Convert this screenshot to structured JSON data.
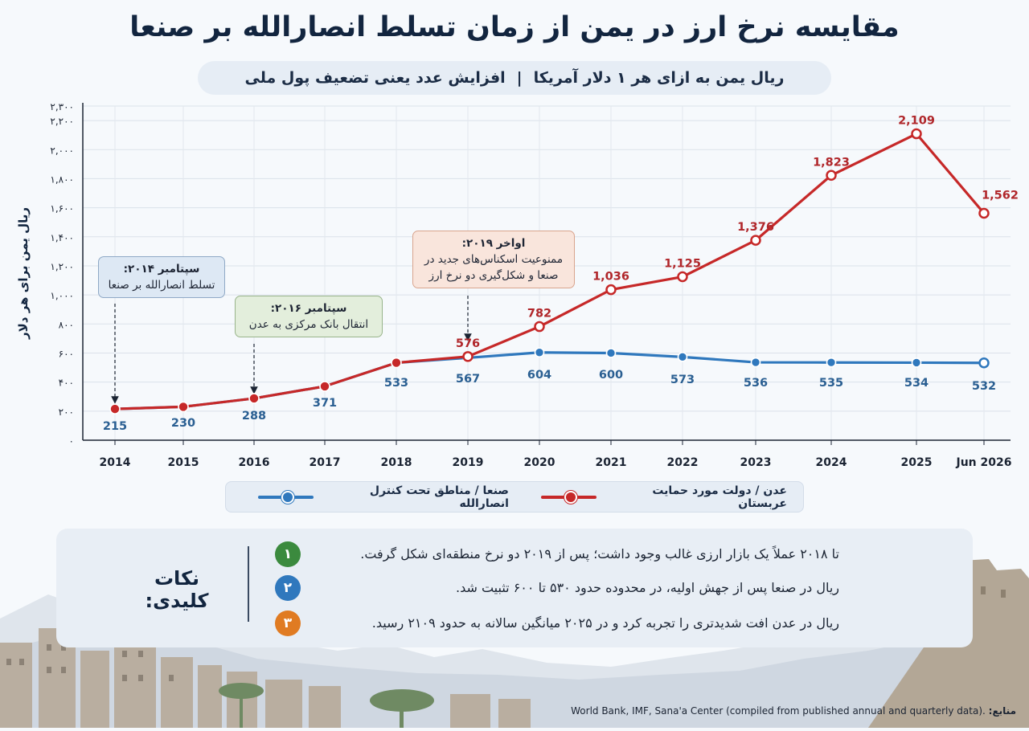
{
  "title": "مقایسه نرخ ارز در یمن از زمان تسلط انصارالله بر صنعا",
  "subtitle": {
    "part1": "ریال یمن به ازای هر ۱ دلار آمریکا",
    "separator": "|",
    "part2": "افزایش عدد یعنی تضعیف پول ملی"
  },
  "chart_data": {
    "type": "line",
    "categories": [
      "2014",
      "2015",
      "2016",
      "2017",
      "2018",
      "2019",
      "2020",
      "2021",
      "2022",
      "2023",
      "2024",
      "2025",
      "Jun 2026"
    ],
    "ylabel": "ریال یمن برای هر دلار",
    "ylim": [
      0,
      2300
    ],
    "yticks": [
      0,
      200,
      400,
      600,
      800,
      1000,
      1200,
      1400,
      1600,
      1800,
      2000,
      2200,
      2300
    ],
    "ytick_labels": [
      "۰",
      "۲۰۰",
      "۴۰۰",
      "۶۰۰",
      "۸۰۰",
      "۱,۰۰۰",
      "۱,۲۰۰",
      "۱,۴۰۰",
      "۱,۶۰۰",
      "۱,۸۰۰",
      "۲,۰۰۰",
      "۲,۲۰۰",
      "۲,۳۰۰"
    ],
    "grid": true,
    "series": [
      {
        "name": "صنعا / مناطق تحت کنترل انصارالله",
        "color": "#2f78bd",
        "values": [
          215,
          230,
          288,
          371,
          533,
          567,
          604,
          600,
          573,
          536,
          535,
          534,
          532
        ],
        "labels": [
          "215",
          "230",
          "288",
          "371",
          "533",
          "567",
          "604",
          "600",
          "573",
          "536",
          "535",
          "534",
          "532"
        ]
      },
      {
        "name": "عدن / دولت مورد حمایت عربستان",
        "color": "#c62828",
        "values": [
          215,
          230,
          288,
          371,
          533,
          576,
          782,
          1036,
          1125,
          1376,
          1823,
          2109,
          1562
        ],
        "labels": [
          null,
          null,
          null,
          null,
          null,
          "576",
          "782",
          "1,036",
          "1,125",
          "1,376",
          "1,823",
          "2,109",
          "1,562"
        ]
      }
    ],
    "annotations": [
      {
        "title": "سپتامبر ۲۰۱۴:",
        "text": "تسلط انصارالله بر صنعا",
        "x": "2014"
      },
      {
        "title": "سپتامبر ۲۰۱۶:",
        "text": "انتقال بانک مرکزی به عدن",
        "x": "2016"
      },
      {
        "title": "اواخر ۲۰۱۹:",
        "text": "ممنوعیت اسکناس‌های جدید در صنعا و شکل‌گیری دو نرخ ارز",
        "x": "2019"
      }
    ]
  },
  "legend": {
    "placement": "bottom",
    "sanaa": "صنعا / مناطق تحت کنترل انصارالله",
    "aden": "عدن / دولت مورد حمایت عربستان"
  },
  "key_points": {
    "title": "نکات کلیدی:",
    "items": [
      {
        "num": "۱",
        "color": "#3b8a3e",
        "text": "تا ۲۰۱۸ عملاً یک بازار ارزی غالب وجود داشت؛ پس از ۲۰۱۹ دو نرخ منطقه‌ای شکل گرفت."
      },
      {
        "num": "۲",
        "color": "#2f78bd",
        "text": "ریال در صنعا پس از جهش اولیه، در محدوده حدود ۵۳۰ تا ۶۰۰ تثبیت شد."
      },
      {
        "num": "۳",
        "color": "#e07b22",
        "text": "ریال در عدن افت شدیدتری را تجربه کرد و در ۲۰۲۵ میانگین سالانه به حدود ۲۱۰۹ رسید."
      }
    ]
  },
  "source": {
    "label": "منابع:",
    "text": "World Bank, IMF, Sana'a Center (compiled from published annual and quarterly data)."
  }
}
